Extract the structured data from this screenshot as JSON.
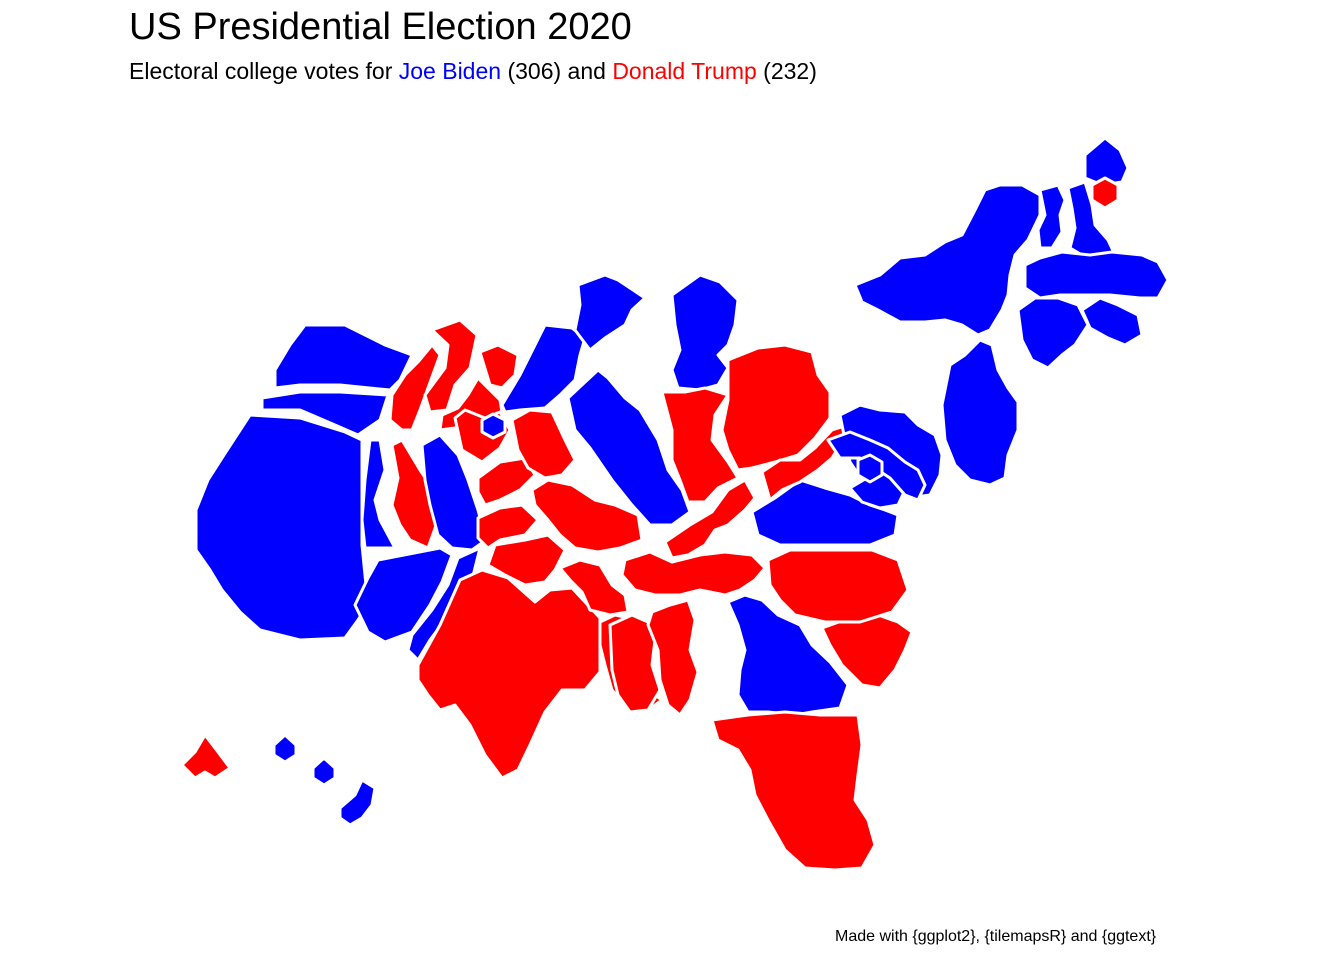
{
  "title": "US Presidential Election 2020",
  "subtitle": {
    "prefix": "Electoral college votes for ",
    "biden_name": "Joe Biden",
    "biden_votes": " (306)",
    "middle": " and ",
    "trump_name": "Donald Trump",
    "trump_votes": " (232)"
  },
  "caption": "Made with {ggplot2}, {tilemapsR} and {ggtext}",
  "colors": {
    "biden": "#0000FF",
    "trump": "#FF0000",
    "border": "#FFFFFF",
    "background": "#FFFFFF"
  },
  "results": {
    "biden_total": 306,
    "trump_total": 232
  },
  "states": [
    {
      "name": "Washington",
      "winner": "biden"
    },
    {
      "name": "Oregon",
      "winner": "biden"
    },
    {
      "name": "California",
      "winner": "biden"
    },
    {
      "name": "Nevada",
      "winner": "biden"
    },
    {
      "name": "Arizona",
      "winner": "biden"
    },
    {
      "name": "Idaho",
      "winner": "trump"
    },
    {
      "name": "Montana",
      "winner": "trump"
    },
    {
      "name": "Utah",
      "winner": "trump"
    },
    {
      "name": "Wyoming",
      "winner": "trump"
    },
    {
      "name": "Colorado",
      "winner": "biden"
    },
    {
      "name": "New Mexico",
      "winner": "biden"
    },
    {
      "name": "North Dakota",
      "winner": "trump"
    },
    {
      "name": "South Dakota",
      "winner": "trump"
    },
    {
      "name": "Nebraska",
      "winner": "trump"
    },
    {
      "name": "Nebraska 2nd District",
      "winner": "biden"
    },
    {
      "name": "Kansas",
      "winner": "trump"
    },
    {
      "name": "Oklahoma",
      "winner": "trump"
    },
    {
      "name": "Texas",
      "winner": "trump"
    },
    {
      "name": "Minnesota",
      "winner": "biden"
    },
    {
      "name": "Iowa",
      "winner": "trump"
    },
    {
      "name": "Missouri",
      "winner": "trump"
    },
    {
      "name": "Arkansas",
      "winner": "trump"
    },
    {
      "name": "Louisiana",
      "winner": "trump"
    },
    {
      "name": "Wisconsin",
      "winner": "biden"
    },
    {
      "name": "Illinois",
      "winner": "biden"
    },
    {
      "name": "Michigan",
      "winner": "biden"
    },
    {
      "name": "Indiana",
      "winner": "trump"
    },
    {
      "name": "Ohio",
      "winner": "trump"
    },
    {
      "name": "Kentucky",
      "winner": "trump"
    },
    {
      "name": "Tennessee",
      "winner": "trump"
    },
    {
      "name": "Mississippi",
      "winner": "trump"
    },
    {
      "name": "Alabama",
      "winner": "trump"
    },
    {
      "name": "Georgia",
      "winner": "biden"
    },
    {
      "name": "Florida",
      "winner": "trump"
    },
    {
      "name": "South Carolina",
      "winner": "trump"
    },
    {
      "name": "North Carolina",
      "winner": "trump"
    },
    {
      "name": "Virginia",
      "winner": "biden"
    },
    {
      "name": "West Virginia",
      "winner": "trump"
    },
    {
      "name": "Pennsylvania",
      "winner": "biden"
    },
    {
      "name": "New York",
      "winner": "biden"
    },
    {
      "name": "New Jersey",
      "winner": "biden"
    },
    {
      "name": "Delaware",
      "winner": "biden"
    },
    {
      "name": "Maryland",
      "winner": "biden"
    },
    {
      "name": "District of Columbia",
      "winner": "biden"
    },
    {
      "name": "Vermont",
      "winner": "biden"
    },
    {
      "name": "New Hampshire",
      "winner": "biden"
    },
    {
      "name": "Massachusetts",
      "winner": "biden"
    },
    {
      "name": "Connecticut",
      "winner": "biden"
    },
    {
      "name": "Rhode Island",
      "winner": "biden"
    },
    {
      "name": "Maine",
      "winner": "biden"
    },
    {
      "name": "Maine 2nd District",
      "winner": "trump"
    },
    {
      "name": "Alaska",
      "winner": "trump"
    },
    {
      "name": "Hawaii",
      "winner": "biden"
    }
  ]
}
